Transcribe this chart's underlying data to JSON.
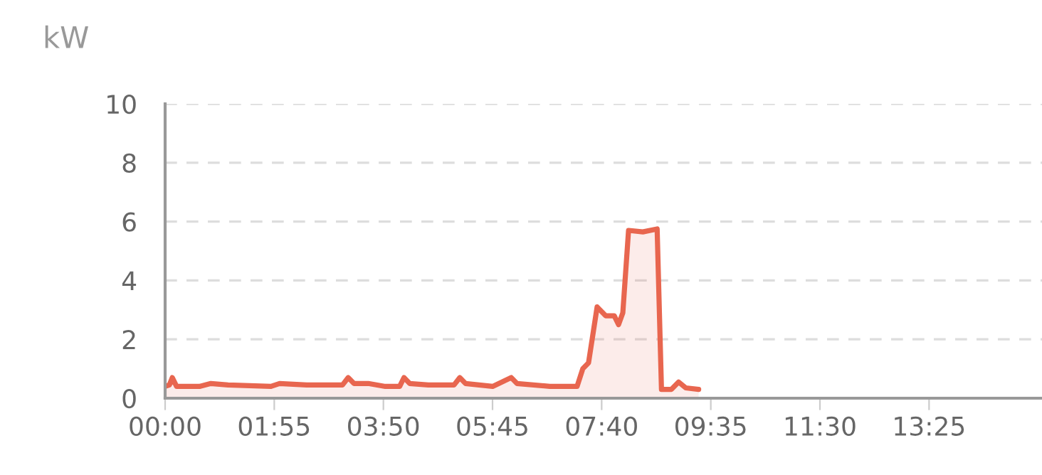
{
  "chart_data": {
    "type": "area",
    "ylabel": "kW",
    "xlim": [
      0,
      15.4
    ],
    "xticks": [
      {
        "value": 0,
        "label": "00:00"
      },
      {
        "value": 1.9167,
        "label": "01:55"
      },
      {
        "value": 3.8333,
        "label": "03:50"
      },
      {
        "value": 5.75,
        "label": "05:45"
      },
      {
        "value": 7.6667,
        "label": "07:40"
      },
      {
        "value": 9.5833,
        "label": "09:35"
      },
      {
        "value": 11.5,
        "label": "11:30"
      },
      {
        "value": 13.4167,
        "label": "13:25"
      }
    ],
    "ylim": [
      0,
      10
    ],
    "yticks": [
      0,
      2,
      4,
      6,
      8,
      10
    ],
    "grid": "y",
    "series": [
      {
        "color": "#e8664f",
        "x": [
          0,
          0.075,
          0.126,
          0.201,
          0.603,
          0.804,
          1.105,
          1.859,
          2.01,
          2.487,
          3.115,
          3.215,
          3.316,
          3.567,
          3.868,
          4.119,
          4.195,
          4.295,
          4.622,
          5.074,
          5.175,
          5.275,
          5.752,
          6.078,
          6.179,
          6.757,
          7.235,
          7.335,
          7.436,
          7.587,
          7.737,
          7.888,
          7.963,
          8.038,
          8.139,
          8.39,
          8.641,
          8.717,
          8.892,
          9.018,
          9.144,
          9.37
        ],
        "values": [
          0.4,
          0.45,
          0.7,
          0.4,
          0.4,
          0.5,
          0.45,
          0.4,
          0.5,
          0.45,
          0.45,
          0.7,
          0.5,
          0.5,
          0.4,
          0.4,
          0.7,
          0.5,
          0.45,
          0.45,
          0.7,
          0.5,
          0.4,
          0.7,
          0.5,
          0.4,
          0.4,
          1.0,
          1.2,
          3.1,
          2.8,
          2.8,
          2.5,
          2.9,
          5.7,
          5.65,
          5.75,
          0.3,
          0.3,
          0.55,
          0.35,
          0.3
        ]
      }
    ]
  }
}
